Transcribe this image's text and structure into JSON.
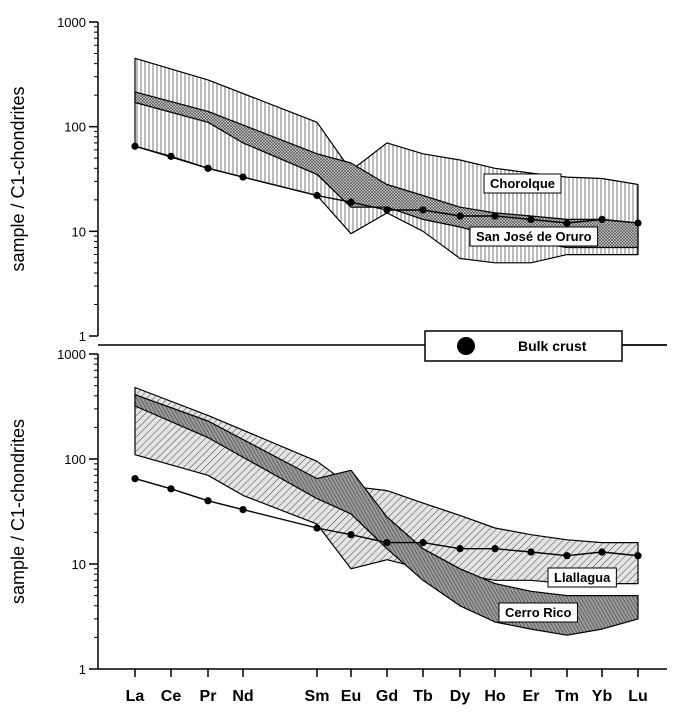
{
  "chart_data": [
    {
      "type": "area",
      "panel": "upper",
      "ylabel": "sample / C1-chondrites",
      "yscale": "log",
      "ylim": [
        1,
        1000
      ],
      "yticks": [
        "1000",
        "100",
        "10",
        "1"
      ],
      "categories": [
        "La",
        "Ce",
        "Pr",
        "Nd",
        "Sm",
        "Eu",
        "Gd",
        "Tb",
        "Dy",
        "Ho",
        "Er",
        "Tm",
        "Yb",
        "Lu"
      ],
      "bulk_crust": [
        {
          "x": "La",
          "y": 65
        },
        {
          "x": "Ce",
          "y": 52
        },
        {
          "x": "Pr",
          "y": 40
        },
        {
          "x": "Nd",
          "y": 33
        },
        {
          "x": "Sm",
          "y": 22
        },
        {
          "x": "Eu",
          "y": 19
        },
        {
          "x": "Gd",
          "y": 16
        },
        {
          "x": "Tb",
          "y": 16
        },
        {
          "x": "Dy",
          "y": 14
        },
        {
          "x": "Ho",
          "y": 14
        },
        {
          "x": "Er",
          "y": 13
        },
        {
          "x": "Tm",
          "y": 12
        },
        {
          "x": "Yb",
          "y": 13
        },
        {
          "x": "Lu",
          "y": 12
        }
      ],
      "fields": [
        {
          "name": "Chorolque",
          "upper": [
            {
              "x": "La",
              "y": 450
            },
            {
              "x": "Pr",
              "y": 280
            },
            {
              "x": "Sm",
              "y": 110
            },
            {
              "x": "Eu",
              "y": 38
            },
            {
              "x": "Gd",
              "y": 70
            },
            {
              "x": "Tb",
              "y": 55
            },
            {
              "x": "Dy",
              "y": 48
            },
            {
              "x": "Ho",
              "y": 40
            },
            {
              "x": "Er",
              "y": 36
            },
            {
              "x": "Tm",
              "y": 33
            },
            {
              "x": "Yb",
              "y": 32
            },
            {
              "x": "Lu",
              "y": 28
            }
          ],
          "lower": [
            {
              "x": "La",
              "y": 65
            },
            {
              "x": "Pr",
              "y": 40
            },
            {
              "x": "Nd",
              "y": 33
            },
            {
              "x": "Sm",
              "y": 22
            },
            {
              "x": "Eu",
              "y": 9.5
            },
            {
              "x": "Gd",
              "y": 15
            },
            {
              "x": "Tb",
              "y": 10
            },
            {
              "x": "Dy",
              "y": 5.5
            },
            {
              "x": "Ho",
              "y": 5
            },
            {
              "x": "Er",
              "y": 5
            },
            {
              "x": "Tm",
              "y": 6
            },
            {
              "x": "Yb",
              "y": 6
            },
            {
              "x": "Lu",
              "y": 6
            }
          ]
        },
        {
          "name": "San José de Oruro",
          "upper": [
            {
              "x": "La",
              "y": 215
            },
            {
              "x": "Pr",
              "y": 140
            },
            {
              "x": "Sm",
              "y": 55
            },
            {
              "x": "Eu",
              "y": 45
            },
            {
              "x": "Gd",
              "y": 28
            },
            {
              "x": "Tb",
              "y": 22
            },
            {
              "x": "Dy",
              "y": 17
            },
            {
              "x": "Ho",
              "y": 15
            },
            {
              "x": "Er",
              "y": 14
            },
            {
              "x": "Tm",
              "y": 13
            },
            {
              "x": "Yb",
              "y": 13
            },
            {
              "x": "Lu",
              "y": 12
            }
          ],
          "lower": [
            {
              "x": "La",
              "y": 170
            },
            {
              "x": "Pr",
              "y": 110
            },
            {
              "x": "Nd",
              "y": 70
            },
            {
              "x": "Sm",
              "y": 35
            },
            {
              "x": "Eu",
              "y": 17
            },
            {
              "x": "Gd",
              "y": 17
            },
            {
              "x": "Tb",
              "y": 13
            },
            {
              "x": "Dy",
              "y": 11
            },
            {
              "x": "Ho",
              "y": 9
            },
            {
              "x": "Er",
              "y": 8
            },
            {
              "x": "Tm",
              "y": 7
            },
            {
              "x": "Yb",
              "y": 7
            },
            {
              "x": "Lu",
              "y": 7
            }
          ]
        }
      ]
    },
    {
      "type": "area",
      "panel": "lower",
      "ylabel": "sample / C1-chondrites",
      "yscale": "log",
      "ylim": [
        1,
        1000
      ],
      "yticks": [
        "1000",
        "100",
        "10",
        "1"
      ],
      "categories": [
        "La",
        "Ce",
        "Pr",
        "Nd",
        "Sm",
        "Eu",
        "Gd",
        "Tb",
        "Dy",
        "Ho",
        "Er",
        "Tm",
        "Yb",
        "Lu"
      ],
      "bulk_crust": [
        {
          "x": "La",
          "y": 65
        },
        {
          "x": "Ce",
          "y": 52
        },
        {
          "x": "Pr",
          "y": 40
        },
        {
          "x": "Nd",
          "y": 33
        },
        {
          "x": "Sm",
          "y": 22
        },
        {
          "x": "Eu",
          "y": 19
        },
        {
          "x": "Gd",
          "y": 16
        },
        {
          "x": "Tb",
          "y": 16
        },
        {
          "x": "Dy",
          "y": 14
        },
        {
          "x": "Ho",
          "y": 14
        },
        {
          "x": "Er",
          "y": 13
        },
        {
          "x": "Tm",
          "y": 12
        },
        {
          "x": "Yb",
          "y": 13
        },
        {
          "x": "Lu",
          "y": 12
        }
      ],
      "fields": [
        {
          "name": "Llallagua",
          "upper": [
            {
              "x": "La",
              "y": 480
            },
            {
              "x": "Pr",
              "y": 260
            },
            {
              "x": "Sm",
              "y": 95
            },
            {
              "x": "Eu",
              "y": 55
            },
            {
              "x": "Gd",
              "y": 50
            },
            {
              "x": "Tb",
              "y": 38
            },
            {
              "x": "Dy",
              "y": 29
            },
            {
              "x": "Ho",
              "y": 22
            },
            {
              "x": "Er",
              "y": 19
            },
            {
              "x": "Tm",
              "y": 17
            },
            {
              "x": "Yb",
              "y": 16
            },
            {
              "x": "Lu",
              "y": 16
            }
          ],
          "lower": [
            {
              "x": "La",
              "y": 110
            },
            {
              "x": "Pr",
              "y": 70
            },
            {
              "x": "Nd",
              "y": 45
            },
            {
              "x": "Sm",
              "y": 24
            },
            {
              "x": "Eu",
              "y": 9
            },
            {
              "x": "Gd",
              "y": 11
            },
            {
              "x": "Tb",
              "y": 9
            },
            {
              "x": "Dy",
              "y": 8
            },
            {
              "x": "Ho",
              "y": 7
            },
            {
              "x": "Er",
              "y": 7
            },
            {
              "x": "Tm",
              "y": 6.5
            },
            {
              "x": "Yb",
              "y": 6.5
            },
            {
              "x": "Lu",
              "y": 6.5
            }
          ]
        },
        {
          "name": "Cerro Rico",
          "upper": [
            {
              "x": "La",
              "y": 410
            },
            {
              "x": "Pr",
              "y": 230
            },
            {
              "x": "Sm",
              "y": 65
            },
            {
              "x": "Eu",
              "y": 78
            },
            {
              "x": "Gd",
              "y": 28
            },
            {
              "x": "Tb",
              "y": 14
            },
            {
              "x": "Dy",
              "y": 9
            },
            {
              "x": "Ho",
              "y": 6.5
            },
            {
              "x": "Er",
              "y": 5.5
            },
            {
              "x": "Tm",
              "y": 5
            },
            {
              "x": "Yb",
              "y": 5
            },
            {
              "x": "Lu",
              "y": 5
            }
          ],
          "lower": [
            {
              "x": "La",
              "y": 320
            },
            {
              "x": "Pr",
              "y": 160
            },
            {
              "x": "Sm",
              "y": 42
            },
            {
              "x": "Eu",
              "y": 30
            },
            {
              "x": "Gd",
              "y": 14
            },
            {
              "x": "Tb",
              "y": 7
            },
            {
              "x": "Dy",
              "y": 4
            },
            {
              "x": "Ho",
              "y": 2.8
            },
            {
              "x": "Er",
              "y": 2.4
            },
            {
              "x": "Tm",
              "y": 2.1
            },
            {
              "x": "Yb",
              "y": 2.4
            },
            {
              "x": "Lu",
              "y": 3
            }
          ]
        }
      ]
    }
  ],
  "legend": {
    "label": "Bulk crust",
    "marker": "filled-circle"
  }
}
